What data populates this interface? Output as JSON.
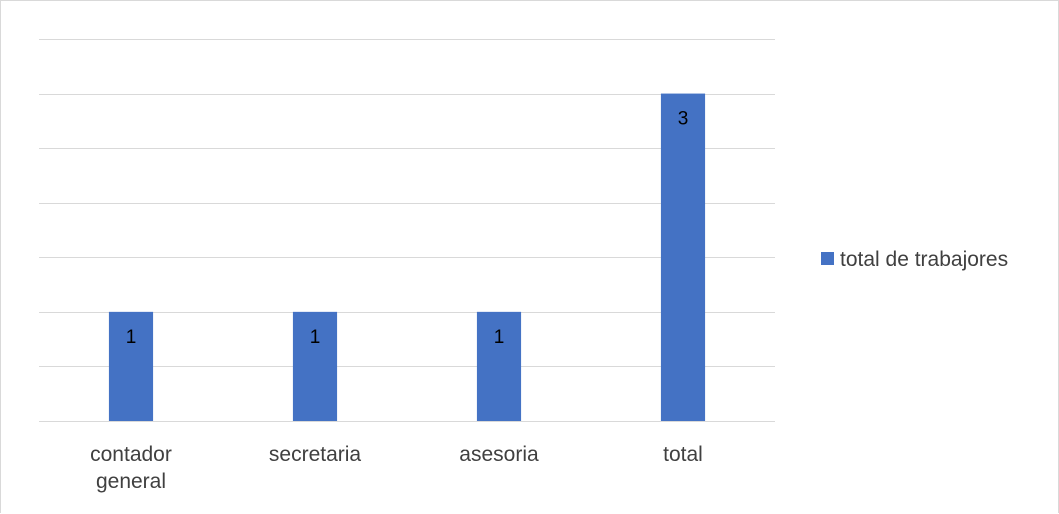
{
  "chart_data": {
    "type": "bar",
    "title": "",
    "xlabel": "",
    "ylabel": "",
    "categories": [
      [
        "contador",
        "general"
      ],
      [
        "secretaria"
      ],
      [
        "asesoria"
      ],
      [
        "total"
      ]
    ],
    "series": [
      {
        "name": "total de trabajores",
        "values": [
          1,
          1,
          1,
          3
        ],
        "color": "#4472c4"
      }
    ],
    "ylim": [
      0,
      3.5
    ],
    "y_tick_step": 0.5,
    "y_tick_labels_shown": false,
    "grid": true,
    "data_labels": true,
    "data_label_position": "inside-end",
    "legend_position": "right",
    "colors": {
      "grid": "#d9d9d9",
      "axis_text": "#404040",
      "border": "#d9d9d9"
    }
  }
}
